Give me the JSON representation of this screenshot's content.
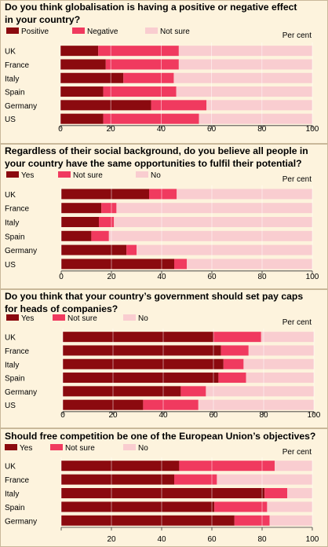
{
  "chart_data": [
    {
      "type": "bar",
      "stacked": true,
      "orientation": "horizontal",
      "title": "Do you think globalisation is having a positive or negative effect in your country?",
      "title_lines": [
        "Do you think globalisation is having a positive or negative effect",
        "in your country?"
      ],
      "unit_label": "Per cent",
      "categories": [
        "UK",
        "France",
        "Italy",
        "Spain",
        "Germany",
        "US"
      ],
      "series": [
        {
          "name": "Positive",
          "color": "#8b0a0f",
          "values": [
            15,
            18,
            25,
            17,
            36,
            17
          ]
        },
        {
          "name": "Negative",
          "color": "#f03a5f",
          "values": [
            32,
            29,
            20,
            29,
            22,
            38
          ]
        },
        {
          "name": "Not sure",
          "color": "#f9cdd0",
          "values": [
            53,
            53,
            55,
            54,
            42,
            45
          ]
        }
      ],
      "xlim": [
        0,
        100
      ],
      "xticks": [
        "0",
        "20",
        "40",
        "60",
        "80",
        "100"
      ],
      "grid": true
    },
    {
      "type": "bar",
      "stacked": true,
      "orientation": "horizontal",
      "title": "Regardless of their social background, do you believe all people in your country have the same opportunities to fulfil their potential?",
      "title_lines": [
        "Regardless of their social background, do you believe all people in",
        "your country have the same opportunities to fulfil their potential?"
      ],
      "unit_label": "Per cent",
      "categories": [
        "UK",
        "France",
        "Italy",
        "Spain",
        "Germany",
        "US"
      ],
      "series": [
        {
          "name": "Yes",
          "color": "#8b0a0f",
          "values": [
            35,
            16,
            15,
            12,
            26,
            45
          ]
        },
        {
          "name": "Not sure",
          "color": "#f03a5f",
          "values": [
            11,
            6,
            6,
            7,
            4,
            5
          ]
        },
        {
          "name": "No",
          "color": "#f9cdd0",
          "values": [
            54,
            78,
            79,
            81,
            70,
            50
          ]
        }
      ],
      "xlim": [
        0,
        100
      ],
      "xticks": [
        "0",
        "20",
        "40",
        "60",
        "80",
        "100"
      ],
      "grid": true
    },
    {
      "type": "bar",
      "stacked": true,
      "orientation": "horizontal",
      "title": "Do you think that your country’s government should set pay caps for heads of companies?",
      "title_lines": [
        "Do you think that your country’s government should set pay caps",
        "for heads of companies?"
      ],
      "unit_label": "Per cent",
      "categories": [
        "UK",
        "France",
        "Italy",
        "Spain",
        "Germany",
        "US"
      ],
      "series": [
        {
          "name": "Yes",
          "color": "#8b0a0f",
          "values": [
            60,
            63,
            64,
            62,
            47,
            32
          ]
        },
        {
          "name": "Not sure",
          "color": "#f03a5f",
          "values": [
            19,
            11,
            8,
            11,
            10,
            22
          ]
        },
        {
          "name": "No",
          "color": "#f9cdd0",
          "values": [
            21,
            26,
            28,
            27,
            43,
            46
          ]
        }
      ],
      "xlim": [
        0,
        100
      ],
      "xticks": [
        "0",
        "20",
        "40",
        "60",
        "80",
        "100"
      ],
      "grid": true
    },
    {
      "type": "bar",
      "stacked": true,
      "orientation": "horizontal",
      "title": "Should free competition be one of the European Union’s objectives?",
      "title_lines": [
        "Should free competition be one of the European Union’s objectives?"
      ],
      "unit_label": "Per cent",
      "categories": [
        "UK",
        "France",
        "Italy",
        "Spain",
        "Germany"
      ],
      "series": [
        {
          "name": "Yes",
          "color": "#8b0a0f",
          "values": [
            47,
            45,
            81,
            61,
            69
          ]
        },
        {
          "name": "Not sure",
          "color": "#f03a5f",
          "values": [
            38,
            17,
            9,
            21,
            14
          ]
        },
        {
          "name": "No",
          "color": "#f9cdd0",
          "values": [
            15,
            38,
            10,
            18,
            17
          ]
        }
      ],
      "xlim": [
        0,
        100
      ],
      "xticks": [
        "",
        "20",
        "40",
        "60",
        "80",
        "100"
      ],
      "grid": true
    }
  ]
}
